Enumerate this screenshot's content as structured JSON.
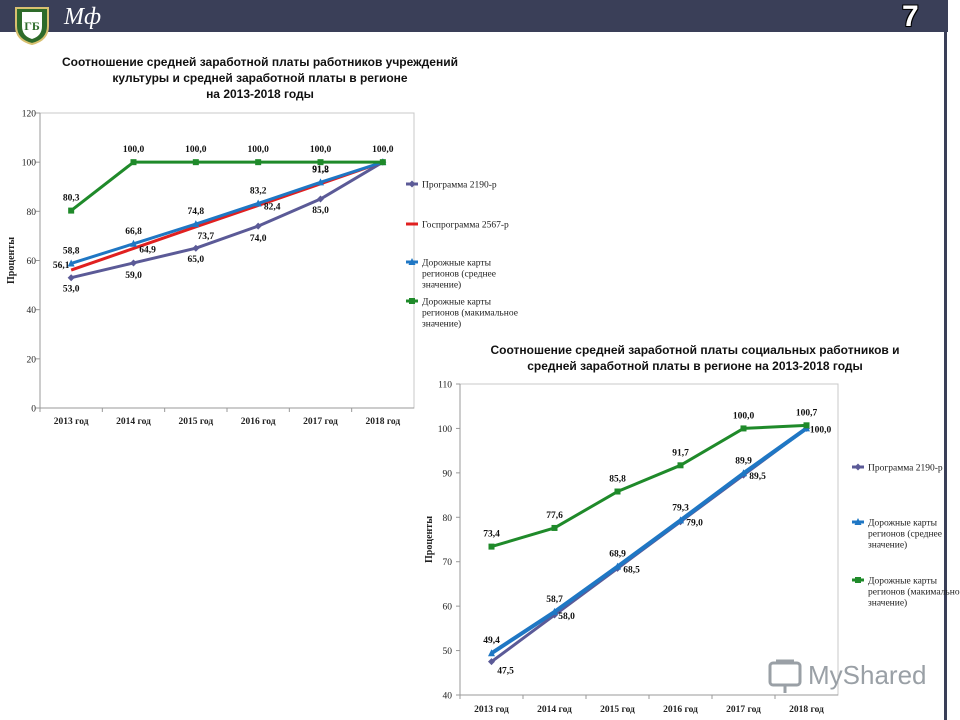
{
  "header": {
    "brand": "Мф",
    "page_number": "7",
    "logo_icon": "crest-icon"
  },
  "watermark": {
    "text": "MyShared",
    "icon": "presentation-screen-icon"
  },
  "colors": {
    "bar": "#3a3f58",
    "purple": "#5b5a97",
    "red": "#e02020",
    "blue": "#1f77c4",
    "green": "#1f8a2a"
  },
  "chart_data": [
    {
      "type": "line",
      "title": "Соотношение средней заработной платы работников учреждений культуры и средней заработной платы в регионе на 2013-2018 годы",
      "title_lines": [
        "Соотношение средней заработной платы работников учреждений",
        "культуры и средней заработной платы в регионе",
        "на 2013-2018 годы"
      ],
      "ylabel": "Проценты",
      "xlabel": "",
      "ylim": [
        0,
        120
      ],
      "yticks": [
        0,
        20,
        40,
        60,
        80,
        100,
        120
      ],
      "categories": [
        "2013 год",
        "2014 год",
        "2015 год",
        "2016 год",
        "2017 год",
        "2018 год"
      ],
      "legend_position": "right",
      "series": [
        {
          "name": "Программа 2190-р",
          "color": "#5b5a97",
          "marker": "diamond",
          "values": [
            53.0,
            59.0,
            65.0,
            74.0,
            85.0,
            100.0
          ],
          "labels": [
            "53,0",
            "59,0",
            "65,0",
            "74,0",
            "85,0",
            ""
          ]
        },
        {
          "name": "Госпрограмма 2567-р",
          "color": "#e02020",
          "marker": "none",
          "values": [
            56.1,
            64.9,
            73.7,
            82.4,
            91.2,
            100.0
          ],
          "labels": [
            "56,1",
            "64,9",
            "73,7",
            "82,4",
            "91,2",
            ""
          ]
        },
        {
          "name": "Дорожные карты регионов (среднее значение)",
          "color": "#1f77c4",
          "marker": "triangle",
          "values": [
            58.8,
            66.8,
            74.8,
            83.2,
            91.8,
            100.0
          ],
          "labels": [
            "58,8",
            "66,8",
            "74,8",
            "83,2",
            "91,8",
            ""
          ]
        },
        {
          "name": "Дорожные карты регионов (макимальное значение)",
          "color": "#1f8a2a",
          "marker": "square",
          "values": [
            80.3,
            100.0,
            100.0,
            100.0,
            100.0,
            100.0
          ],
          "labels": [
            "80,3",
            "100,0",
            "100,0",
            "100,0",
            "100,0",
            "100,0"
          ]
        }
      ]
    },
    {
      "type": "line",
      "title": "Соотношение средней заработной платы социальных работников и средней заработной платы в регионе на 2013-2018 годы",
      "title_lines": [
        "Соотношение средней заработной платы социальных работников и",
        "средней заработной платы в регионе на 2013-2018 годы"
      ],
      "ylabel": "Проценты",
      "xlabel": "",
      "ylim": [
        40,
        110
      ],
      "yticks": [
        40,
        50,
        60,
        70,
        80,
        90,
        100,
        110
      ],
      "categories": [
        "2013 год",
        "2014 год",
        "2015 год",
        "2016 год",
        "2017 год",
        "2018 год"
      ],
      "legend_position": "right",
      "series": [
        {
          "name": "Программа 2190-р",
          "color": "#5b5a97",
          "marker": "diamond",
          "values": [
            47.5,
            58.0,
            68.5,
            79.0,
            89.5,
            100.0
          ],
          "labels": [
            "47,5",
            "58,0",
            "68,5",
            "79,0",
            "89,5",
            "100,0"
          ]
        },
        {
          "name": "Дорожные карты регионов (среднее значение)",
          "color": "#1f77c4",
          "marker": "triangle",
          "values": [
            49.4,
            58.7,
            68.9,
            79.3,
            89.9,
            100.0
          ],
          "labels": [
            "49,4",
            "58,7",
            "68,9",
            "79,3",
            "89,9",
            ""
          ]
        },
        {
          "name": "Дорожные карты регионов (макимальное значение)",
          "color": "#1f8a2a",
          "marker": "square",
          "values": [
            73.4,
            77.6,
            85.8,
            91.7,
            100.0,
            100.7
          ],
          "labels": [
            "73,4",
            "77,6",
            "85,8",
            "91,7",
            "100,0",
            "100,7"
          ]
        }
      ]
    }
  ]
}
